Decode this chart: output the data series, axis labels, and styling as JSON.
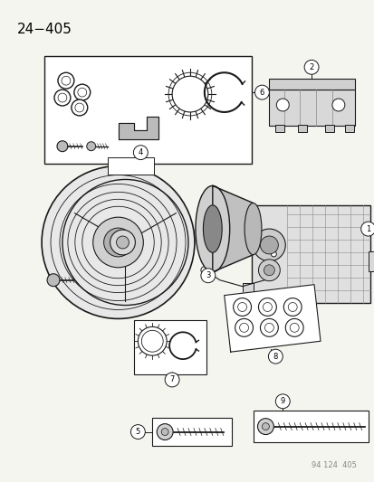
{
  "title": "24−405",
  "background_color": "#f5f5f0",
  "fig_width": 4.14,
  "fig_height": 5.33,
  "dpi": 100,
  "page_num_text": "94 124  405"
}
